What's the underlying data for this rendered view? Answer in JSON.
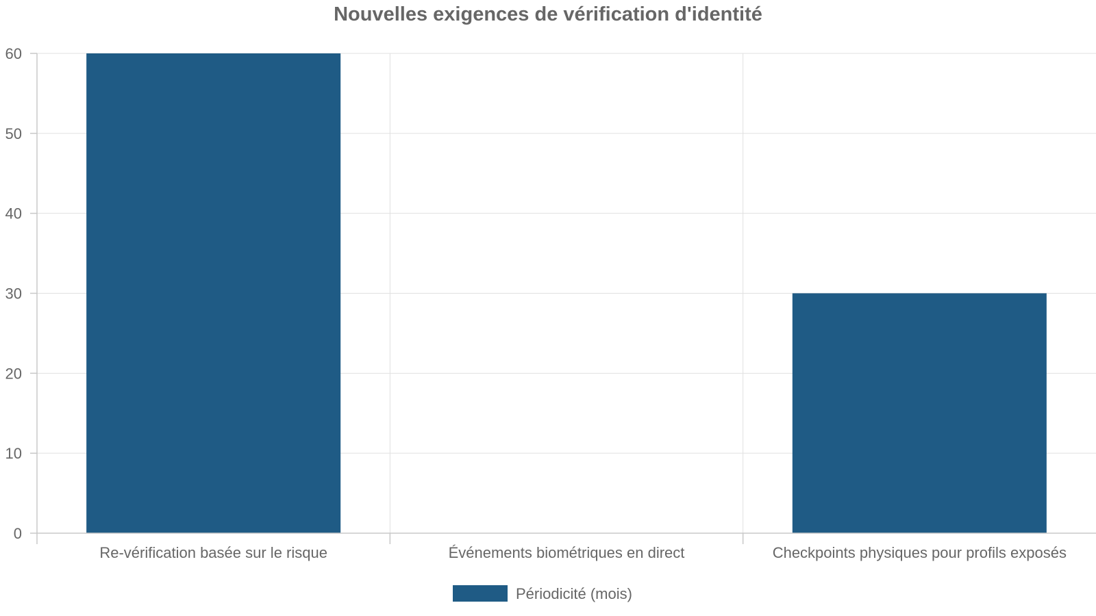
{
  "chart_data": {
    "type": "bar",
    "title": "Nouvelles exigences de vérification d'identité",
    "categories": [
      "Re-vérification basée sur le risque",
      "Événements biométriques en direct",
      "Checkpoints physiques pour profils exposés"
    ],
    "series": [
      {
        "name": "Périodicité (mois)",
        "values": [
          60,
          0,
          30
        ],
        "color": "#1f5b85"
      }
    ],
    "ylim": [
      0,
      60
    ],
    "yticks": [
      0,
      10,
      20,
      30,
      40,
      50,
      60
    ],
    "xlabel": "",
    "ylabel": "",
    "grid": true,
    "legend_position": "bottom"
  }
}
